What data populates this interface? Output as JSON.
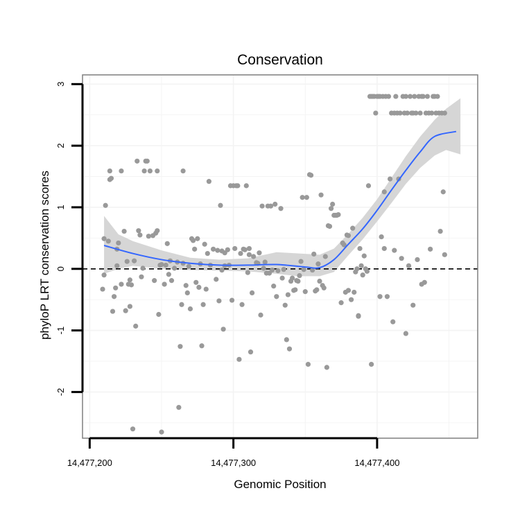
{
  "chart_data": {
    "type": "scatter",
    "title": "Conservation",
    "xlabel": "Genomic Position",
    "ylabel": "phyloP LRT conservation scores",
    "xlim": [
      14477195,
      14477470
    ],
    "ylim": [
      -2.75,
      3.15
    ],
    "x_ticks": [
      {
        "value": 14477200,
        "label": "14,477,200"
      },
      {
        "value": 14477300,
        "label": "14,477,300"
      },
      {
        "value": 14477400,
        "label": "14,477,400"
      }
    ],
    "y_ticks": [
      {
        "value": -2,
        "label": "-2"
      },
      {
        "value": -1,
        "label": "-1"
      },
      {
        "value": 0,
        "label": "0"
      },
      {
        "value": 1,
        "label": "1"
      },
      {
        "value": 2,
        "label": "2"
      },
      {
        "value": 3,
        "label": "3"
      }
    ],
    "reference_line": {
      "y": 0,
      "style": "dashed"
    },
    "grid": true,
    "colors": {
      "points": "#999999",
      "smooth": "#3366ff",
      "ribbon": "#d4d4d4",
      "frame": "#7f7f7f",
      "grid": "#f3f3f3"
    },
    "points": [
      [
        14477209,
        -0.33
      ],
      [
        14477210,
        0.49
      ],
      [
        14477210,
        -0.1
      ],
      [
        14477211,
        1.03
      ],
      [
        14477213,
        0.45
      ],
      [
        14477214,
        1.59
      ],
      [
        14477214,
        1.45
      ],
      [
        14477215,
        1.47
      ],
      [
        14477216,
        -0.69
      ],
      [
        14477217,
        -0.45
      ],
      [
        14477218,
        -0.31
      ],
      [
        14477219,
        0.32
      ],
      [
        14477219,
        0.05
      ],
      [
        14477220,
        0.42
      ],
      [
        14477222,
        1.59
      ],
      [
        14477222,
        -0.25
      ],
      [
        14477224,
        0.61
      ],
      [
        14477225,
        -0.68
      ],
      [
        14477226,
        0.12
      ],
      [
        14477227,
        -0.25
      ],
      [
        14477228,
        -0.61
      ],
      [
        14477228,
        -0.18
      ],
      [
        14477229,
        -0.26
      ],
      [
        14477230,
        -2.6
      ],
      [
        14477231,
        0.13
      ],
      [
        14477232,
        -0.93
      ],
      [
        14477233,
        1.75
      ],
      [
        14477234,
        0.62
      ],
      [
        14477235,
        0.55
      ],
      [
        14477236,
        -0.13
      ],
      [
        14477237,
        0.01
      ],
      [
        14477238,
        1.59
      ],
      [
        14477239,
        1.75
      ],
      [
        14477240,
        1.75
      ],
      [
        14477241,
        0.53
      ],
      [
        14477242,
        1.59
      ],
      [
        14477244,
        0.54
      ],
      [
        14477245,
        -0.19
      ],
      [
        14477246,
        0.58
      ],
      [
        14477247,
        0.62
      ],
      [
        14477247,
        1.59
      ],
      [
        14477248,
        -0.74
      ],
      [
        14477249,
        0.06
      ],
      [
        14477250,
        0.07
      ],
      [
        14477250,
        -2.65
      ],
      [
        14477252,
        -0.25
      ],
      [
        14477253,
        0.06
      ],
      [
        14477254,
        0.41
      ],
      [
        14477255,
        -0.09
      ],
      [
        14477256,
        0.13
      ],
      [
        14477257,
        -0.19
      ],
      [
        14477259,
        0.01
      ],
      [
        14477261,
        0.11
      ],
      [
        14477262,
        -2.25
      ],
      [
        14477263,
        -1.26
      ],
      [
        14477264,
        -0.58
      ],
      [
        14477265,
        0.09
      ],
      [
        14477265,
        1.59
      ],
      [
        14477267,
        -0.27
      ],
      [
        14477268,
        -0.39
      ],
      [
        14477269,
        0.04
      ],
      [
        14477270,
        -0.65
      ],
      [
        14477271,
        0.49
      ],
      [
        14477272,
        0.46
      ],
      [
        14477273,
        0.32
      ],
      [
        14477274,
        -0.22
      ],
      [
        14477275,
        0.49
      ],
      [
        14477276,
        -0.3
      ],
      [
        14477277,
        0.08
      ],
      [
        14477278,
        -1.25
      ],
      [
        14477279,
        -0.58
      ],
      [
        14477280,
        0.4
      ],
      [
        14477281,
        -0.33
      ],
      [
        14477282,
        0.25
      ],
      [
        14477283,
        1.42
      ],
      [
        14477284,
        0.06
      ],
      [
        14477286,
        0.32
      ],
      [
        14477288,
        -0.17
      ],
      [
        14477289,
        0.3
      ],
      [
        14477290,
        -0.52
      ],
      [
        14477291,
        1.03
      ],
      [
        14477292,
        0.29
      ],
      [
        14477292,
        -0.02
      ],
      [
        14477293,
        -0.98
      ],
      [
        14477294,
        0.26
      ],
      [
        14477294,
        0.05
      ],
      [
        14477296,
        0.31
      ],
      [
        14477297,
        0.06
      ],
      [
        14477298,
        1.35
      ],
      [
        14477299,
        -0.51
      ],
      [
        14477300,
        1.35
      ],
      [
        14477301,
        0.33
      ],
      [
        14477302,
        1.35
      ],
      [
        14477303,
        1.35
      ],
      [
        14477304,
        -1.47
      ],
      [
        14477305,
        0.25
      ],
      [
        14477306,
        -0.58
      ],
      [
        14477307,
        0.32
      ],
      [
        14477308,
        0.31
      ],
      [
        14477309,
        1.35
      ],
      [
        14477310,
        -0.06
      ],
      [
        14477311,
        0.33
      ],
      [
        14477311,
        0.23
      ],
      [
        14477312,
        -1.35
      ],
      [
        14477313,
        -0.39
      ],
      [
        14477314,
        0.2
      ],
      [
        14477316,
        0.1
      ],
      [
        14477317,
        0.09
      ],
      [
        14477318,
        0.26
      ],
      [
        14477319,
        -0.75
      ],
      [
        14477320,
        1.02
      ],
      [
        14477321,
        0.01
      ],
      [
        14477322,
        0.11
      ],
      [
        14477323,
        -0.07
      ],
      [
        14477324,
        1.02
      ],
      [
        14477325,
        -0.07
      ],
      [
        14477326,
        1.02
      ],
      [
        14477327,
        -0.02
      ],
      [
        14477328,
        -0.28
      ],
      [
        14477329,
        1.05
      ],
      [
        14477330,
        -0.45
      ],
      [
        14477331,
        -0.03
      ],
      [
        14477333,
        0.98
      ],
      [
        14477334,
        -0.15
      ],
      [
        14477335,
        -0.01
      ],
      [
        14477336,
        -0.59
      ],
      [
        14477337,
        -1.15
      ],
      [
        14477338,
        -0.42
      ],
      [
        14477339,
        -1.3
      ],
      [
        14477340,
        -0.2
      ],
      [
        14477341,
        -0.15
      ],
      [
        14477342,
        -0.35
      ],
      [
        14477343,
        -0.34
      ],
      [
        14477344,
        -0.19
      ],
      [
        14477345,
        -0.2
      ],
      [
        14477346,
        -0.11
      ],
      [
        14477347,
        0.12
      ],
      [
        14477348,
        1.16
      ],
      [
        14477349,
        -0.01
      ],
      [
        14477350,
        -0.37
      ],
      [
        14477351,
        1.16
      ],
      [
        14477352,
        -1.55
      ],
      [
        14477353,
        1.53
      ],
      [
        14477354,
        1.52
      ],
      [
        14477355,
        -0.02
      ],
      [
        14477356,
        0.24
      ],
      [
        14477357,
        -0.36
      ],
      [
        14477358,
        -0.34
      ],
      [
        14477359,
        0.08
      ],
      [
        14477360,
        -0.2
      ],
      [
        14477361,
        1.2
      ],
      [
        14477362,
        -0.27
      ],
      [
        14477363,
        -0.31
      ],
      [
        14477364,
        0.2
      ],
      [
        14477365,
        -1.6
      ],
      [
        14477366,
        0.7
      ],
      [
        14477367,
        0.69
      ],
      [
        14477368,
        0.98
      ],
      [
        14477369,
        1.05
      ],
      [
        14477370,
        0.87
      ],
      [
        14477371,
        0.87
      ],
      [
        14477372,
        0.87
      ],
      [
        14477373,
        0.88
      ],
      [
        14477375,
        -0.55
      ],
      [
        14477376,
        0.42
      ],
      [
        14477377,
        0.39
      ],
      [
        14477378,
        -0.38
      ],
      [
        14477379,
        0.55
      ],
      [
        14477380,
        0.54
      ],
      [
        14477380,
        -0.35
      ],
      [
        14477382,
        -0.5
      ],
      [
        14477383,
        0.66
      ],
      [
        14477384,
        -0.38
      ],
      [
        14477385,
        -0.05
      ],
      [
        14477386,
        0.0
      ],
      [
        14477387,
        -0.77
      ],
      [
        14477387,
        -0.76
      ],
      [
        14477388,
        0.33
      ],
      [
        14477389,
        0.05
      ],
      [
        14477390,
        -0.1
      ],
      [
        14477391,
        0.21
      ],
      [
        14477392,
        0.0
      ],
      [
        14477393,
        -0.04
      ],
      [
        14477394,
        1.35
      ],
      [
        14477395,
        2.8
      ],
      [
        14477396,
        2.8
      ],
      [
        14477396,
        -1.55
      ],
      [
        14477397,
        2.8
      ],
      [
        14477398,
        2.8
      ],
      [
        14477399,
        2.53
      ],
      [
        14477400,
        2.8
      ],
      [
        14477401,
        2.8
      ],
      [
        14477402,
        2.8
      ],
      [
        14477402,
        -0.45
      ],
      [
        14477403,
        0.52
      ],
      [
        14477404,
        2.8
      ],
      [
        14477405,
        1.25
      ],
      [
        14477405,
        0.33
      ],
      [
        14477406,
        2.8
      ],
      [
        14477407,
        -0.45
      ],
      [
        14477408,
        2.8
      ],
      [
        14477409,
        1.46
      ],
      [
        14477410,
        2.53
      ],
      [
        14477411,
        -0.86
      ],
      [
        14477412,
        2.53
      ],
      [
        14477412,
        0.3
      ],
      [
        14477413,
        2.8
      ],
      [
        14477414,
        2.53
      ],
      [
        14477415,
        1.46
      ],
      [
        14477416,
        2.53
      ],
      [
        14477417,
        0.17
      ],
      [
        14477418,
        2.8
      ],
      [
        14477419,
        2.53
      ],
      [
        14477420,
        2.8
      ],
      [
        14477420,
        -1.05
      ],
      [
        14477421,
        2.53
      ],
      [
        14477422,
        0.05
      ],
      [
        14477423,
        2.8
      ],
      [
        14477424,
        2.53
      ],
      [
        14477425,
        2.53
      ],
      [
        14477425,
        -0.59
      ],
      [
        14477426,
        2.8
      ],
      [
        14477427,
        2.53
      ],
      [
        14477428,
        0.15
      ],
      [
        14477429,
        2.8
      ],
      [
        14477430,
        2.53
      ],
      [
        14477431,
        2.8
      ],
      [
        14477431,
        -0.25
      ],
      [
        14477432,
        2.8
      ],
      [
        14477433,
        -0.22
      ],
      [
        14477434,
        2.53
      ],
      [
        14477435,
        2.8
      ],
      [
        14477436,
        2.53
      ],
      [
        14477437,
        0.32
      ],
      [
        14477438,
        2.53
      ],
      [
        14477439,
        2.8
      ],
      [
        14477440,
        2.8
      ],
      [
        14477441,
        2.53
      ],
      [
        14477442,
        2.8
      ],
      [
        14477443,
        2.53
      ],
      [
        14477444,
        0.61
      ],
      [
        14477445,
        2.53
      ],
      [
        14477446,
        1.25
      ],
      [
        14477447,
        0.23
      ],
      [
        14477447,
        2.53
      ]
    ],
    "smooth": [
      [
        14477210,
        0.38
      ],
      [
        14477230,
        0.25
      ],
      [
        14477250,
        0.15
      ],
      [
        14477270,
        0.09
      ],
      [
        14477290,
        0.06
      ],
      [
        14477310,
        0.06
      ],
      [
        14477330,
        0.07
      ],
      [
        14477350,
        0.03
      ],
      [
        14477360,
        0.02
      ],
      [
        14477370,
        0.15
      ],
      [
        14477380,
        0.4
      ],
      [
        14477390,
        0.65
      ],
      [
        14477400,
        0.95
      ],
      [
        14477410,
        1.28
      ],
      [
        14477420,
        1.6
      ],
      [
        14477430,
        1.9
      ],
      [
        14477440,
        2.15
      ],
      [
        14477455,
        2.23
      ]
    ],
    "ribbon": [
      [
        14477210,
        0.86,
        -0.08
      ],
      [
        14477220,
        0.56,
        0.0
      ],
      [
        14477230,
        0.45,
        0.05
      ],
      [
        14477250,
        0.3,
        0.0
      ],
      [
        14477270,
        0.18,
        -0.02
      ],
      [
        14477290,
        0.15,
        -0.03
      ],
      [
        14477310,
        0.17,
        -0.04
      ],
      [
        14477330,
        0.27,
        -0.08
      ],
      [
        14477345,
        0.25,
        -0.12
      ],
      [
        14477360,
        0.23,
        -0.12
      ],
      [
        14477370,
        0.33,
        -0.05
      ],
      [
        14477380,
        0.57,
        0.22
      ],
      [
        14477390,
        0.83,
        0.48
      ],
      [
        14477400,
        1.13,
        0.77
      ],
      [
        14477410,
        1.48,
        1.07
      ],
      [
        14477420,
        1.83,
        1.38
      ],
      [
        14477430,
        2.15,
        1.64
      ],
      [
        14477440,
        2.42,
        1.84
      ],
      [
        14477448,
        2.6,
        1.93
      ],
      [
        14477458,
        2.77,
        1.86
      ]
    ]
  }
}
